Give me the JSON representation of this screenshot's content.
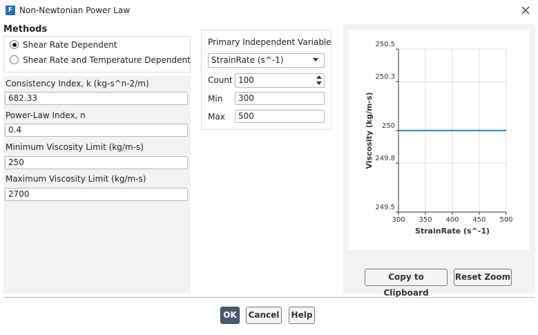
{
  "window": {
    "title": "Non-Newtonian Power Law"
  },
  "methods": {
    "heading": "Methods",
    "options": [
      {
        "label": "Shear Rate Dependent",
        "selected": true
      },
      {
        "label": "Shear Rate and Temperature Dependent",
        "selected": false
      }
    ]
  },
  "fields": [
    {
      "label": "Consistency Index, k (kg-s^n-2/m)",
      "value": "682.33"
    },
    {
      "label": "Power-Law Index, n",
      "value": "0.4"
    },
    {
      "label": "Minimum Viscosity Limit (kg/m-s)",
      "value": "250"
    },
    {
      "label": "Maximum Viscosity Limit (kg/m-s)",
      "value": "2700"
    }
  ],
  "plot_settings": {
    "heading": "Primary Independent Variable",
    "variable": "StrainRate (s^-1)",
    "count_label": "Count",
    "count": "100",
    "min_label": "Min",
    "min": "300",
    "max_label": "Max",
    "max": "500"
  },
  "chart_data": {
    "type": "line",
    "x_label": "StrainRate (s^-1)",
    "y_label": "Viscosity (kg/m-s)",
    "x": [
      300,
      500
    ],
    "values": [
      250,
      250
    ],
    "color": "#1a8fd0",
    "xlim": [
      300,
      500
    ],
    "xticks": [
      300,
      350,
      400,
      450,
      500
    ],
    "ylim": [
      249.5,
      250.5
    ],
    "yticks": [
      249.5,
      249.8,
      250,
      250.3,
      250.5
    ],
    "grid": true
  },
  "chart_buttons": [
    "Copy to Clipboard",
    "Reset Zoom"
  ],
  "dialog_buttons": [
    "OK",
    "Cancel",
    "Help"
  ]
}
